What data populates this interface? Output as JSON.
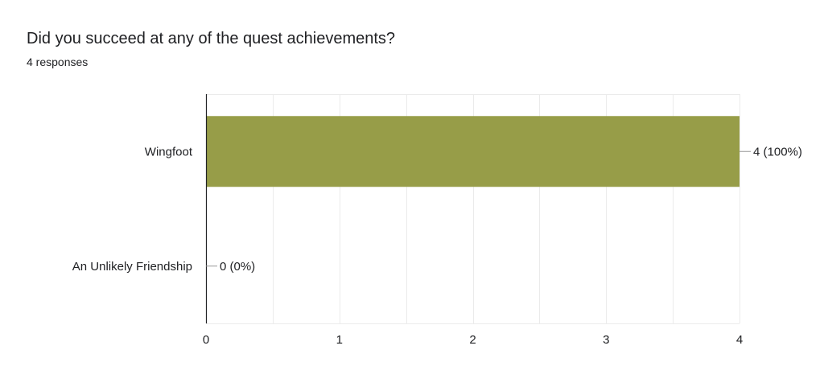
{
  "header": {
    "question": "Did you succeed at any of the quest achievements?",
    "responses": "4 responses"
  },
  "colors": {
    "bar": "#979d48",
    "grid": "#ebebeb",
    "axis": "#202124",
    "text": "#202124"
  },
  "chart_data": {
    "type": "bar",
    "orientation": "horizontal",
    "title": "Did you succeed at any of the quest achievements?",
    "categories": [
      "Wingfoot",
      "An Unlikely Friendship"
    ],
    "values": [
      4,
      0
    ],
    "data_labels": [
      "4 (100%)",
      "0 (0%)"
    ],
    "xlim": [
      0,
      4
    ],
    "x_ticks": [
      "0",
      "1",
      "2",
      "3",
      "4"
    ],
    "grid": true,
    "legend": "none"
  }
}
